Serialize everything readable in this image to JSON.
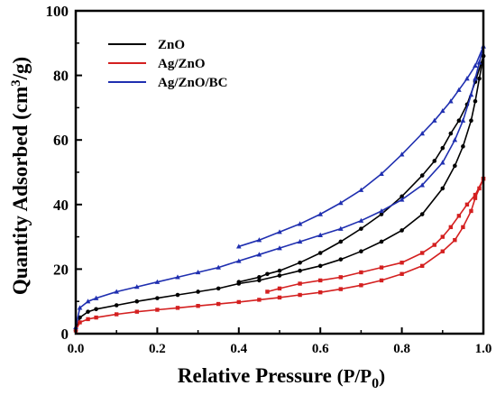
{
  "chart_data": {
    "type": "line",
    "xlabel": "Relative Pressure (P/P0)",
    "xlabel_parts": [
      "Relative Pressure ",
      "(P/P",
      "0",
      ")"
    ],
    "ylabel": "Quantity Adsorbed (cm³/g)",
    "ylabel_parts": [
      "Quantity Adsorbed (cm",
      "3",
      "/g)"
    ],
    "xlim": [
      0.0,
      1.0
    ],
    "ylim": [
      0,
      100
    ],
    "xticks": [
      "0.0",
      "0.2",
      "0.4",
      "0.6",
      "0.8",
      "1.0"
    ],
    "yticks": [
      "0",
      "20",
      "40",
      "60",
      "80",
      "100"
    ],
    "legend_position": "top-left",
    "grid": false,
    "series": [
      {
        "name": "ZnO",
        "color": "#000000",
        "marker": "circle",
        "adsorption": [
          [
            0.0,
            1
          ],
          [
            0.01,
            5
          ],
          [
            0.03,
            6.8
          ],
          [
            0.05,
            7.6
          ],
          [
            0.1,
            8.8
          ],
          [
            0.15,
            10
          ],
          [
            0.2,
            11
          ],
          [
            0.25,
            12
          ],
          [
            0.3,
            13
          ],
          [
            0.35,
            14
          ],
          [
            0.4,
            15.5
          ],
          [
            0.45,
            16.5
          ],
          [
            0.5,
            18
          ],
          [
            0.55,
            19.5
          ],
          [
            0.6,
            21
          ],
          [
            0.65,
            23
          ],
          [
            0.7,
            25.5
          ],
          [
            0.75,
            28.5
          ],
          [
            0.8,
            32
          ],
          [
            0.85,
            37
          ],
          [
            0.9,
            45
          ],
          [
            0.93,
            52
          ],
          [
            0.95,
            58
          ],
          [
            0.97,
            66
          ],
          [
            0.98,
            72
          ],
          [
            0.99,
            79
          ],
          [
            1.0,
            86
          ]
        ],
        "desorption": [
          [
            1.0,
            86
          ],
          [
            0.98,
            78
          ],
          [
            0.96,
            71
          ],
          [
            0.94,
            66
          ],
          [
            0.92,
            62
          ],
          [
            0.9,
            57.5
          ],
          [
            0.88,
            53.5
          ],
          [
            0.85,
            49
          ],
          [
            0.8,
            42.5
          ],
          [
            0.75,
            37
          ],
          [
            0.7,
            32.5
          ],
          [
            0.65,
            28.5
          ],
          [
            0.6,
            25
          ],
          [
            0.55,
            22
          ],
          [
            0.5,
            19.5
          ],
          [
            0.47,
            18.5
          ],
          [
            0.45,
            17.5
          ],
          [
            0.4,
            16
          ]
        ]
      },
      {
        "name": "Ag/ZnO",
        "color": "#d42020",
        "marker": "square",
        "adsorption": [
          [
            0.0,
            1
          ],
          [
            0.01,
            3.5
          ],
          [
            0.03,
            4.5
          ],
          [
            0.05,
            5
          ],
          [
            0.1,
            6
          ],
          [
            0.15,
            6.8
          ],
          [
            0.2,
            7.4
          ],
          [
            0.25,
            8
          ],
          [
            0.3,
            8.6
          ],
          [
            0.35,
            9.2
          ],
          [
            0.4,
            9.8
          ],
          [
            0.45,
            10.5
          ],
          [
            0.5,
            11.2
          ],
          [
            0.55,
            12
          ],
          [
            0.6,
            12.8
          ],
          [
            0.65,
            13.8
          ],
          [
            0.7,
            15
          ],
          [
            0.75,
            16.5
          ],
          [
            0.8,
            18.5
          ],
          [
            0.85,
            21
          ],
          [
            0.9,
            25.5
          ],
          [
            0.93,
            29
          ],
          [
            0.95,
            33
          ],
          [
            0.97,
            38
          ],
          [
            0.98,
            42
          ],
          [
            0.99,
            45
          ],
          [
            1.0,
            48
          ]
        ],
        "desorption": [
          [
            1.0,
            48
          ],
          [
            0.98,
            43
          ],
          [
            0.96,
            40
          ],
          [
            0.94,
            36.5
          ],
          [
            0.92,
            33
          ],
          [
            0.9,
            30
          ],
          [
            0.88,
            27.5
          ],
          [
            0.85,
            25
          ],
          [
            0.8,
            22
          ],
          [
            0.75,
            20.5
          ],
          [
            0.7,
            19
          ],
          [
            0.65,
            17.5
          ],
          [
            0.6,
            16.5
          ],
          [
            0.55,
            15.5
          ],
          [
            0.5,
            14
          ],
          [
            0.47,
            13
          ]
        ]
      },
      {
        "name": "Ag/ZnO/BC",
        "color": "#1f2fb0",
        "marker": "triangle",
        "adsorption": [
          [
            0.0,
            2
          ],
          [
            0.01,
            8
          ],
          [
            0.03,
            10
          ],
          [
            0.05,
            11
          ],
          [
            0.1,
            13
          ],
          [
            0.15,
            14.5
          ],
          [
            0.2,
            16
          ],
          [
            0.25,
            17.5
          ],
          [
            0.3,
            19
          ],
          [
            0.35,
            20.5
          ],
          [
            0.4,
            22.5
          ],
          [
            0.45,
            24.5
          ],
          [
            0.5,
            26.5
          ],
          [
            0.55,
            28.5
          ],
          [
            0.6,
            30.5
          ],
          [
            0.65,
            32.5
          ],
          [
            0.7,
            35
          ],
          [
            0.75,
            38
          ],
          [
            0.8,
            41.5
          ],
          [
            0.85,
            46
          ],
          [
            0.9,
            53
          ],
          [
            0.93,
            60
          ],
          [
            0.95,
            66
          ],
          [
            0.97,
            74
          ],
          [
            0.98,
            79
          ],
          [
            0.99,
            84
          ],
          [
            1.0,
            89
          ]
        ],
        "desorption": [
          [
            1.0,
            89
          ],
          [
            0.98,
            83
          ],
          [
            0.96,
            79
          ],
          [
            0.94,
            75.5
          ],
          [
            0.92,
            72
          ],
          [
            0.9,
            69
          ],
          [
            0.88,
            66
          ],
          [
            0.85,
            62
          ],
          [
            0.8,
            55.5
          ],
          [
            0.75,
            49.5
          ],
          [
            0.7,
            44.5
          ],
          [
            0.65,
            40.5
          ],
          [
            0.6,
            37
          ],
          [
            0.55,
            34
          ],
          [
            0.5,
            31.5
          ],
          [
            0.45,
            29
          ],
          [
            0.4,
            27
          ]
        ]
      }
    ]
  }
}
